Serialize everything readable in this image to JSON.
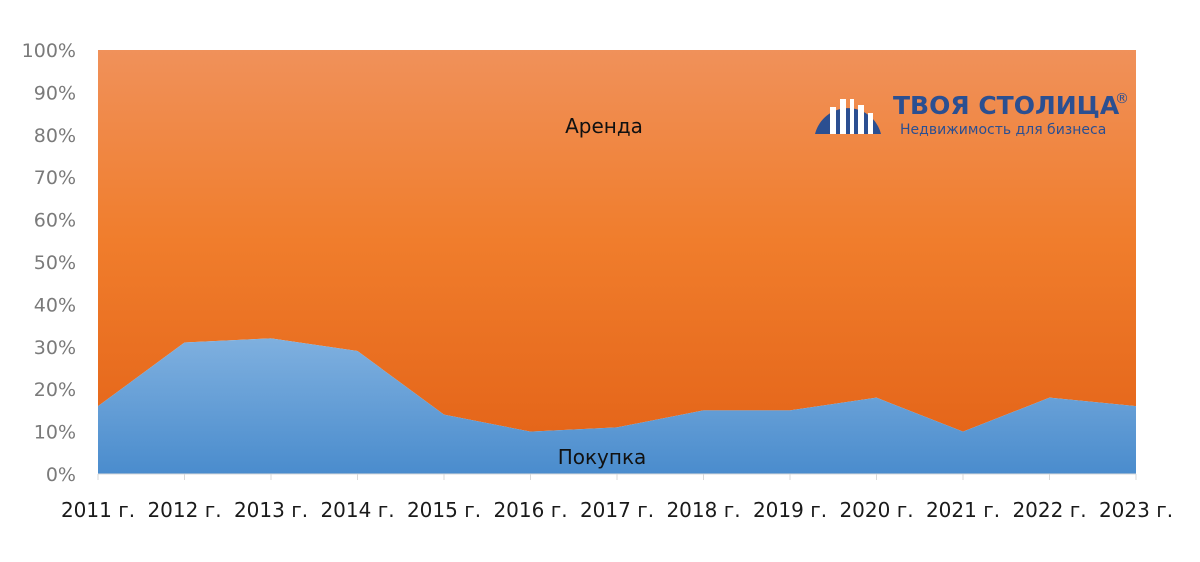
{
  "chart_data": {
    "type": "area",
    "stacked": "percent",
    "categories": [
      "2011 г.",
      "2012 г.",
      "2013 г.",
      "2014 г.",
      "2015 г.",
      "2016 г.",
      "2017 г.",
      "2018 г.",
      "2019 г.",
      "2020 г.",
      "2021 г.",
      "2022 г.",
      "2023 г."
    ],
    "series": [
      {
        "name": "Покупка",
        "values": [
          16,
          31,
          32,
          29,
          14,
          10,
          11,
          15,
          15,
          18,
          10,
          18,
          16
        ],
        "color": "#5b9bd5"
      },
      {
        "name": "Аренда",
        "values": [
          84,
          69,
          68,
          71,
          86,
          90,
          89,
          85,
          85,
          82,
          90,
          82,
          84
        ],
        "color": "#ed7d31"
      }
    ],
    "ylim": [
      0,
      100
    ],
    "yticks": [
      "0%",
      "10%",
      "20%",
      "30%",
      "40%",
      "50%",
      "60%",
      "70%",
      "80%",
      "90%",
      "100%"
    ],
    "grid": false,
    "legend": "none"
  },
  "logo": {
    "name": "ТВОЯ СТОЛИЦА",
    "registered": "®",
    "tagline": "Недвижимость для бизнеса"
  }
}
